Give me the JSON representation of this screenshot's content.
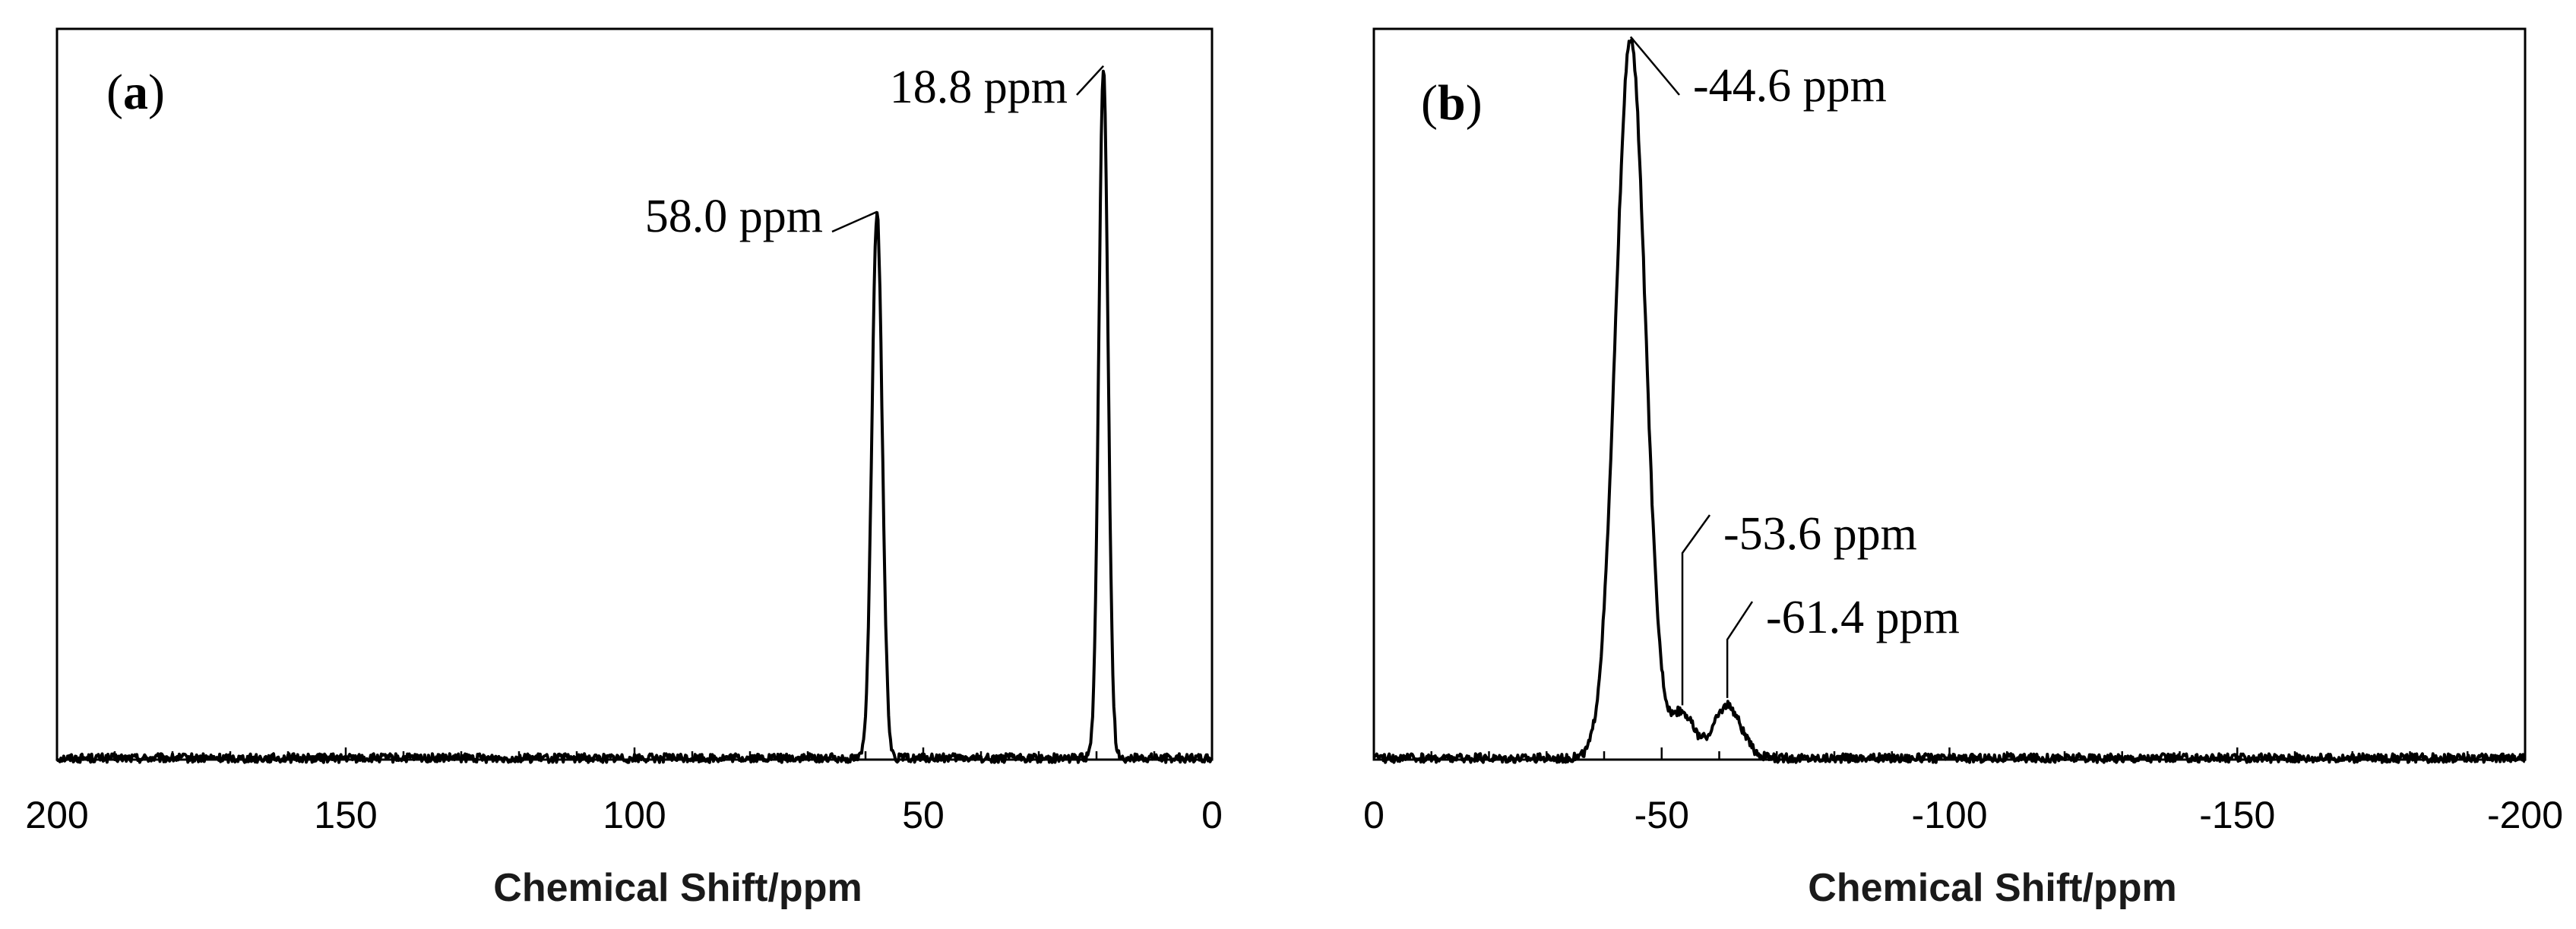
{
  "chart_data": [
    {
      "type": "line",
      "panel_label": {
        "open": "(",
        "letter": "a",
        "close": ")"
      },
      "xlabel": "Chemical Shift/ppm",
      "ylabel": "",
      "xlim": [
        200,
        0
      ],
      "x_reversed": true,
      "xticks": [
        200,
        150,
        100,
        50,
        0
      ],
      "xtick_labels": [
        "200",
        "150",
        "100",
        "50",
        "0"
      ],
      "minor_tick_step": 10,
      "ylim": [
        0,
        1.0
      ],
      "baseline": 0.0,
      "peaks": [
        {
          "center": 58.0,
          "height": 0.745,
          "width": 0.9,
          "label": "58.0 ppm"
        },
        {
          "center": 18.8,
          "height": 0.945,
          "width": 0.8,
          "label": "18.8 ppm"
        }
      ]
    },
    {
      "type": "line",
      "panel_label": {
        "open": "(",
        "letter": "b",
        "close": ")"
      },
      "xlabel": "Chemical Shift/ppm",
      "ylabel": "",
      "xlim": [
        0,
        -200
      ],
      "x_reversed": true,
      "xticks": [
        0,
        -50,
        -100,
        -150,
        -200
      ],
      "xtick_labels": [
        "0",
        "-50",
        "-100",
        "-150",
        "-200"
      ],
      "minor_tick_step": 10,
      "ylim": [
        0,
        1.0
      ],
      "baseline": 0.0,
      "peaks": [
        {
          "center": -44.6,
          "height": 0.985,
          "width": 2.6,
          "label": "-44.6 ppm"
        },
        {
          "center": -53.6,
          "height": 0.062,
          "width": 2.0,
          "label": "-53.6 ppm"
        },
        {
          "center": -61.4,
          "height": 0.072,
          "width": 2.4,
          "label": "-61.4 ppm"
        }
      ]
    }
  ]
}
